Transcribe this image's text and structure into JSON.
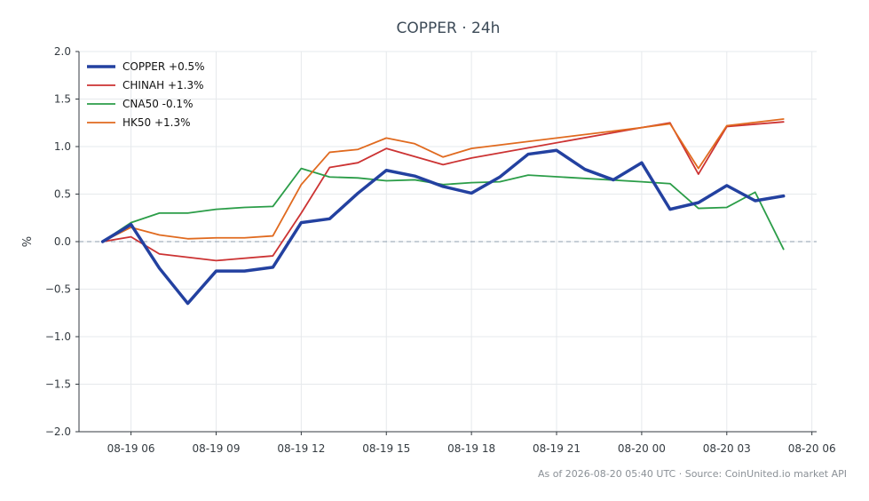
{
  "chart_data": {
    "type": "line",
    "title": "COPPER · 24h",
    "ylabel": "%",
    "xlabel": "",
    "ylim": [
      -2.0,
      2.0
    ],
    "yticks": [
      -2.0,
      -1.5,
      -1.0,
      -0.5,
      0.0,
      0.5,
      1.0,
      1.5,
      2.0
    ],
    "ytick_labels": [
      "−2.0",
      "−1.5",
      "−1.0",
      "−0.5",
      "0.0",
      "0.5",
      "1.0",
      "1.5",
      "2.0"
    ],
    "xlim": [
      "2026-08-19 04:10",
      "2026-08-20 06:10"
    ],
    "xticks": [
      "2026-08-19 06:00",
      "2026-08-19 09:00",
      "2026-08-19 12:00",
      "2026-08-19 15:00",
      "2026-08-19 18:00",
      "2026-08-19 21:00",
      "2026-08-20 00:00",
      "2026-08-20 03:00",
      "2026-08-20 06:00"
    ],
    "xtick_labels": [
      "08-19 06",
      "08-19 09",
      "08-19 12",
      "08-19 15",
      "08-19 18",
      "08-19 21",
      "08-20 00",
      "08-20 03",
      "08-20 06"
    ],
    "grid": true,
    "zero_line": true,
    "legend_position": "top-left",
    "series": [
      {
        "name": "COPPER +0.5%",
        "color": "#2341a0",
        "emphasis": true,
        "points": [
          [
            "2026-08-19 05:00",
            0.0
          ],
          [
            "2026-08-19 06:00",
            0.18
          ],
          [
            "2026-08-19 07:00",
            -0.28
          ],
          [
            "2026-08-19 08:00",
            -0.65
          ],
          [
            "2026-08-19 09:00",
            -0.31
          ],
          [
            "2026-08-19 10:00",
            -0.31
          ],
          [
            "2026-08-19 11:00",
            -0.27
          ],
          [
            "2026-08-19 12:00",
            0.2
          ],
          [
            "2026-08-19 13:00",
            0.24
          ],
          [
            "2026-08-19 14:00",
            0.51
          ],
          [
            "2026-08-19 15:00",
            0.75
          ],
          [
            "2026-08-19 16:00",
            0.69
          ],
          [
            "2026-08-19 17:00",
            0.58
          ],
          [
            "2026-08-19 18:00",
            0.51
          ],
          [
            "2026-08-19 19:00",
            0.68
          ],
          [
            "2026-08-19 20:00",
            0.92
          ],
          [
            "2026-08-19 21:00",
            0.96
          ],
          [
            "2026-08-19 22:00",
            0.76
          ],
          [
            "2026-08-19 23:00",
            0.65
          ],
          [
            "2026-08-20 00:00",
            0.83
          ],
          [
            "2026-08-20 01:00",
            0.34
          ],
          [
            "2026-08-20 02:00",
            0.41
          ],
          [
            "2026-08-20 03:00",
            0.59
          ],
          [
            "2026-08-20 04:00",
            0.43
          ],
          [
            "2026-08-20 05:00",
            0.48
          ]
        ]
      },
      {
        "name": "CHINAH +1.3%",
        "color": "#cc3333",
        "emphasis": false,
        "points": [
          [
            "2026-08-19 05:00",
            0.0
          ],
          [
            "2026-08-19 06:00",
            0.05
          ],
          [
            "2026-08-19 07:00",
            -0.13
          ],
          [
            "2026-08-19 09:00",
            -0.2
          ],
          [
            "2026-08-19 11:00",
            -0.15
          ],
          [
            "2026-08-19 12:00",
            0.3
          ],
          [
            "2026-08-19 13:00",
            0.78
          ],
          [
            "2026-08-19 14:00",
            0.83
          ],
          [
            "2026-08-19 15:00",
            0.98
          ],
          [
            "2026-08-19 17:00",
            0.81
          ],
          [
            "2026-08-19 18:00",
            0.88
          ],
          [
            "2026-08-20 00:00",
            1.2
          ],
          [
            "2026-08-20 01:00",
            1.25
          ],
          [
            "2026-08-20 02:00",
            0.71
          ],
          [
            "2026-08-20 03:00",
            1.21
          ],
          [
            "2026-08-20 05:00",
            1.26
          ]
        ]
      },
      {
        "name": "CNA50 -0.1%",
        "color": "#2b9d48",
        "emphasis": false,
        "points": [
          [
            "2026-08-19 05:00",
            0.0
          ],
          [
            "2026-08-19 06:00",
            0.2
          ],
          [
            "2026-08-19 07:00",
            0.3
          ],
          [
            "2026-08-19 08:00",
            0.3
          ],
          [
            "2026-08-19 09:00",
            0.34
          ],
          [
            "2026-08-19 10:00",
            0.36
          ],
          [
            "2026-08-19 11:00",
            0.37
          ],
          [
            "2026-08-19 12:00",
            0.77
          ],
          [
            "2026-08-19 13:00",
            0.68
          ],
          [
            "2026-08-19 14:00",
            0.67
          ],
          [
            "2026-08-19 15:00",
            0.64
          ],
          [
            "2026-08-19 16:00",
            0.65
          ],
          [
            "2026-08-19 17:00",
            0.6
          ],
          [
            "2026-08-19 18:00",
            0.62
          ],
          [
            "2026-08-19 19:00",
            0.63
          ],
          [
            "2026-08-19 20:00",
            0.7
          ],
          [
            "2026-08-20 00:00",
            0.63
          ],
          [
            "2026-08-20 01:00",
            0.61
          ],
          [
            "2026-08-20 02:00",
            0.35
          ],
          [
            "2026-08-20 03:00",
            0.36
          ],
          [
            "2026-08-20 04:00",
            0.52
          ],
          [
            "2026-08-20 05:00",
            -0.08
          ]
        ]
      },
      {
        "name": "HK50 +1.3%",
        "color": "#e06a1f",
        "emphasis": false,
        "points": [
          [
            "2026-08-19 05:00",
            0.0
          ],
          [
            "2026-08-19 06:00",
            0.15
          ],
          [
            "2026-08-19 07:00",
            0.07
          ],
          [
            "2026-08-19 08:00",
            0.03
          ],
          [
            "2026-08-19 09:00",
            0.04
          ],
          [
            "2026-08-19 10:00",
            0.04
          ],
          [
            "2026-08-19 11:00",
            0.06
          ],
          [
            "2026-08-19 12:00",
            0.6
          ],
          [
            "2026-08-19 13:00",
            0.94
          ],
          [
            "2026-08-19 14:00",
            0.97
          ],
          [
            "2026-08-19 15:00",
            1.09
          ],
          [
            "2026-08-19 16:00",
            1.03
          ],
          [
            "2026-08-19 17:00",
            0.89
          ],
          [
            "2026-08-19 18:00",
            0.98
          ],
          [
            "2026-08-20 00:00",
            1.2
          ],
          [
            "2026-08-20 01:00",
            1.24
          ],
          [
            "2026-08-20 02:00",
            0.77
          ],
          [
            "2026-08-20 03:00",
            1.22
          ],
          [
            "2026-08-20 05:00",
            1.29
          ]
        ]
      }
    ]
  },
  "footer": {
    "note": "As of 2026-08-20 05:40 UTC · Source: CoinUnited.io market API"
  }
}
